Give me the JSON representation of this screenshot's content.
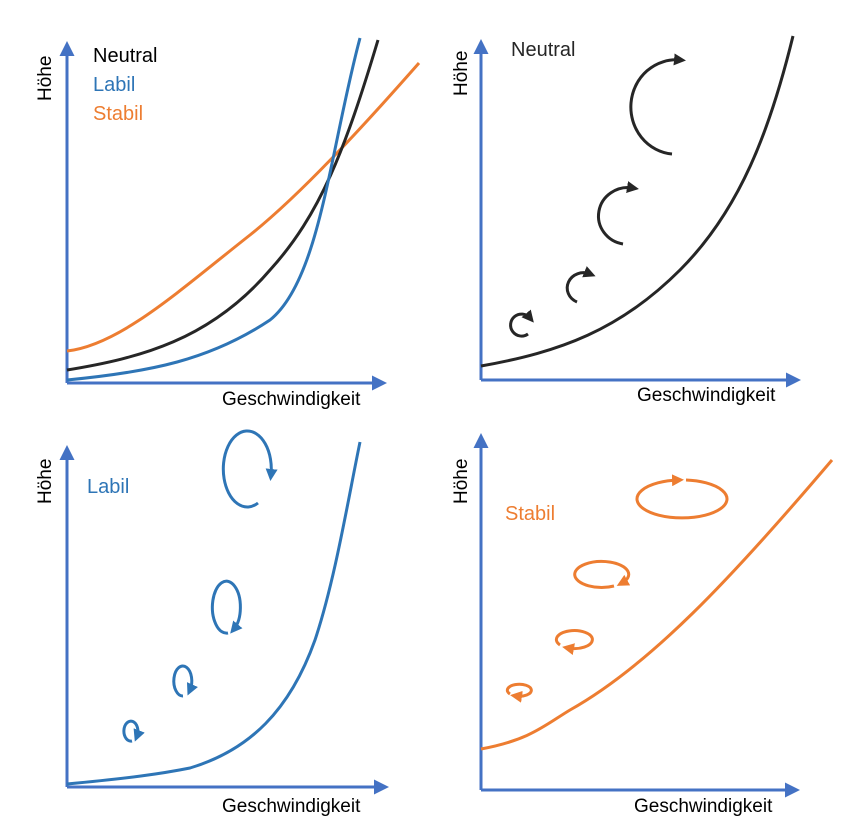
{
  "colors": {
    "axis": "#4472c4",
    "neutral": "#262626",
    "labil": "#2e75b6",
    "stabil": "#ed7d31"
  },
  "panels": [
    {
      "id": "overview",
      "y_label": "Höhe",
      "x_label": "Geschwindigkeit",
      "legend": [
        {
          "label": "Neutral",
          "color": "#000000"
        },
        {
          "label": "Labil",
          "color": "#2e75b6"
        },
        {
          "label": "Stabil",
          "color": "#ed7d31"
        }
      ]
    },
    {
      "id": "neutral",
      "y_label": "Höhe",
      "x_label": "Geschwindigkeit",
      "title": "Neutral",
      "eddy_icon": "counter-rotating-spiral"
    },
    {
      "id": "labil",
      "y_label": "Höhe",
      "x_label": "Geschwindigkeit",
      "title": "Labil",
      "eddy_icon": "vertically-elongated-spiral"
    },
    {
      "id": "stabil",
      "y_label": "Höhe",
      "x_label": "Geschwindigkeit",
      "title": "Stabil",
      "eddy_icon": "horizontally-flattened-spiral"
    }
  ]
}
